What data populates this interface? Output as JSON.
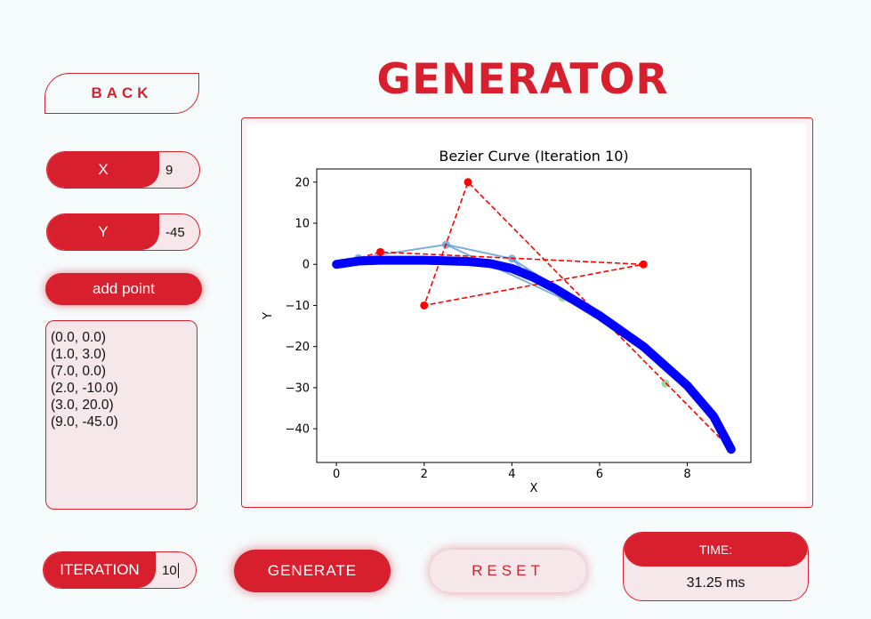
{
  "header": {
    "title": "GENERATOR",
    "back_label": "BACK"
  },
  "inputs": {
    "x": {
      "label": "X",
      "value": "9"
    },
    "y": {
      "label": "Y",
      "value": "-45"
    },
    "add_point_label": "add point",
    "iteration": {
      "label": "ITERATION",
      "value": "10"
    }
  },
  "points_list": [
    "(0.0, 0.0)",
    "(1.0, 3.0)",
    "(7.0, 0.0)",
    "(2.0, -10.0)",
    "(3.0, 20.0)",
    "(9.0, -45.0)"
  ],
  "actions": {
    "generate_label": "GENERATE",
    "reset_label": "RESET"
  },
  "timing": {
    "label": "TIME:",
    "value": "31.25 ms"
  },
  "colors": {
    "accent": "#d81f2e",
    "soft": "#f6e8ea",
    "curve": "#0000ff",
    "control": "#ff0000",
    "construction": "#5b9bd5"
  },
  "chart_data": {
    "type": "line",
    "title": "Bezier Curve (Iteration 10)",
    "xlabel": "X",
    "ylabel": "Y",
    "xlim": [
      -0.45,
      9.45
    ],
    "ylim": [
      -48.2,
      23.2
    ],
    "xticks": [
      0,
      2,
      4,
      6,
      8
    ],
    "yticks": [
      20,
      10,
      0,
      -10,
      -20,
      -30,
      -40
    ],
    "control_points": [
      [
        0,
        0
      ],
      [
        1,
        3
      ],
      [
        7,
        0
      ],
      [
        2,
        -10
      ],
      [
        3,
        20
      ],
      [
        9,
        -45
      ]
    ],
    "construction_points": [
      [
        0.5,
        1.5
      ],
      [
        2.5,
        4.8
      ],
      [
        4.0,
        1.4
      ],
      [
        4.3,
        -1.8
      ],
      [
        6.0,
        -12.5
      ],
      [
        5.15,
        -8.1
      ],
      [
        7.5,
        -29
      ]
    ],
    "construction_lines": [
      [
        [
          2.5,
          4.8
        ],
        [
          4.0,
          1.4
        ],
        [
          4.3,
          -1.8
        ]
      ],
      [
        [
          0.5,
          1.5
        ],
        [
          2.5,
          4.8
        ],
        [
          6.0,
          -12.5
        ]
      ],
      [
        [
          4.0,
          1.4
        ],
        [
          6.0,
          -12.5
        ]
      ]
    ],
    "curve": [
      [
        0,
        0
      ],
      [
        0.5,
        0.8
      ],
      [
        1.0,
        1.0
      ],
      [
        2.0,
        1.0
      ],
      [
        3.0,
        0.7
      ],
      [
        3.5,
        0.2
      ],
      [
        4.0,
        -1.0
      ],
      [
        4.5,
        -3.2
      ],
      [
        5.0,
        -6.0
      ],
      [
        6.0,
        -12.5
      ],
      [
        7.0,
        -20.0
      ],
      [
        8.0,
        -29.5
      ],
      [
        8.6,
        -37.0
      ],
      [
        9.0,
        -45.0
      ]
    ]
  }
}
